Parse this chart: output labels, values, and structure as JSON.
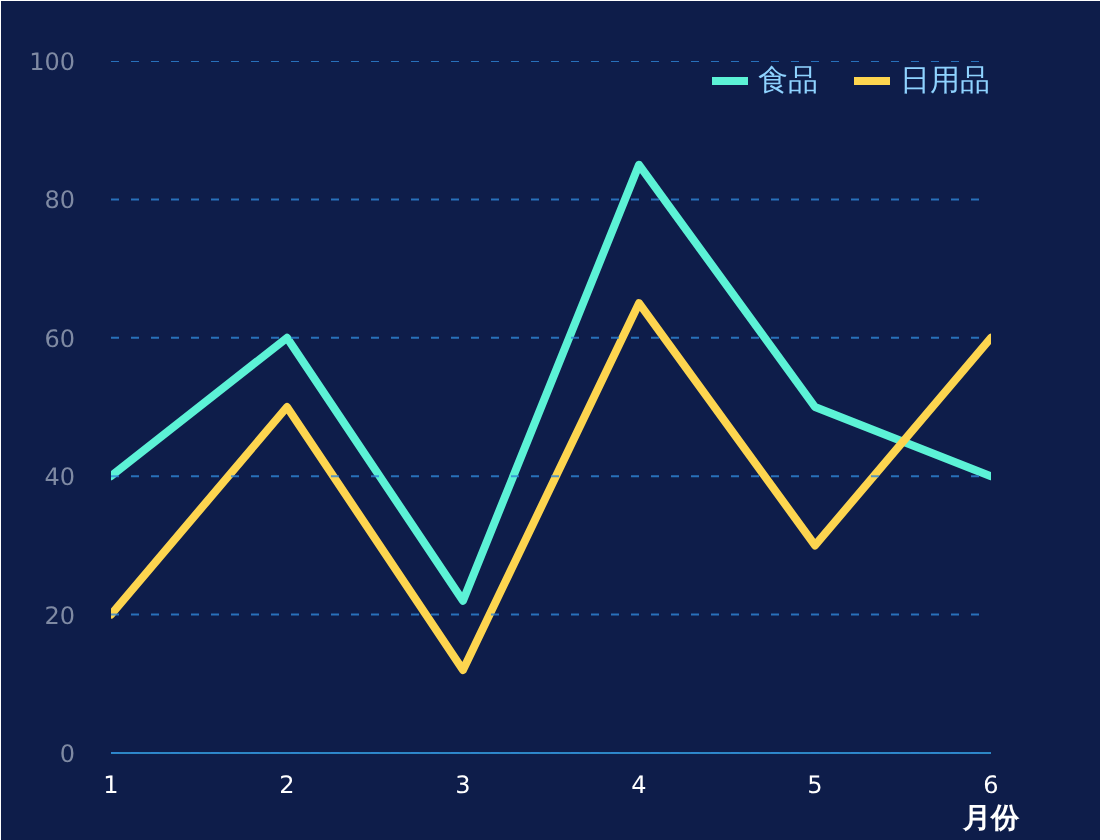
{
  "chart_data": {
    "type": "line",
    "xlabel": "月份",
    "x": [
      1,
      2,
      3,
      4,
      5,
      6
    ],
    "xlim": [
      1,
      6
    ],
    "xticks": [
      1,
      2,
      3,
      4,
      5,
      6
    ],
    "ylim": [
      0,
      100
    ],
    "yticks": [
      0,
      20,
      40,
      60,
      80,
      100
    ],
    "grid": "y",
    "legend": "top right",
    "marker": "none",
    "line_style": "solid",
    "series": [
      {
        "name": "食品",
        "color": "#5cf2d6",
        "values": [
          40,
          60,
          22,
          85,
          50,
          40
        ]
      },
      {
        "name": "日用品",
        "color": "#fdd54f",
        "values": [
          20,
          50,
          12,
          65,
          30,
          60
        ]
      }
    ]
  }
}
